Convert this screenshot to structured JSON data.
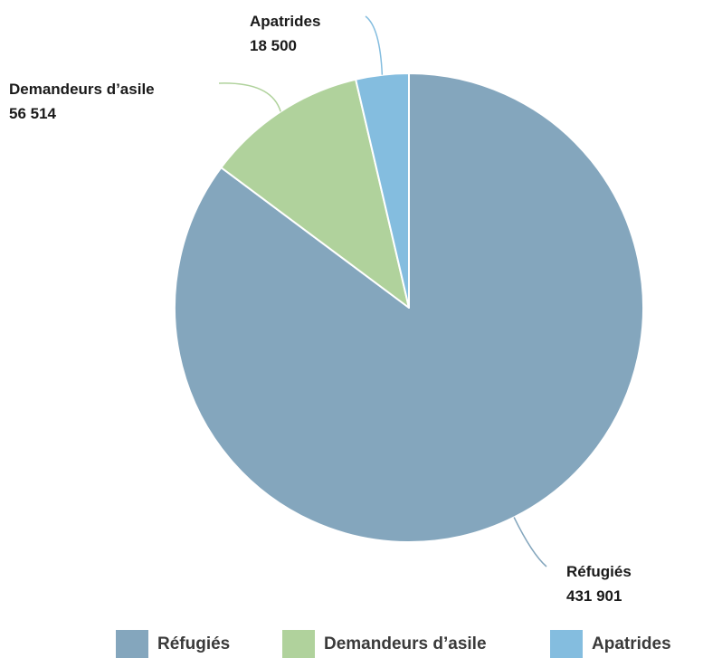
{
  "chart_data": {
    "type": "pie",
    "title": "",
    "slices": [
      {
        "label": "Réfugiés",
        "value": 431901,
        "value_text": "431 901",
        "color": "#84a6bd"
      },
      {
        "label": "Demandeurs d’asile",
        "value": 56514,
        "value_text": "56 514",
        "color": "#b0d29c"
      },
      {
        "label": "Apatrides",
        "value": 18500,
        "value_text": "18 500",
        "color": "#84bddf"
      }
    ],
    "start_angle_deg": 0,
    "direction": "clockwise",
    "legend_position": "bottom"
  },
  "legend": {
    "items": [
      {
        "label": "Réfugiés",
        "color": "#84a6bd"
      },
      {
        "label": "Demandeurs d’asile",
        "color": "#b0d29c"
      },
      {
        "label": "Apatrides",
        "color": "#84bddf"
      }
    ]
  }
}
